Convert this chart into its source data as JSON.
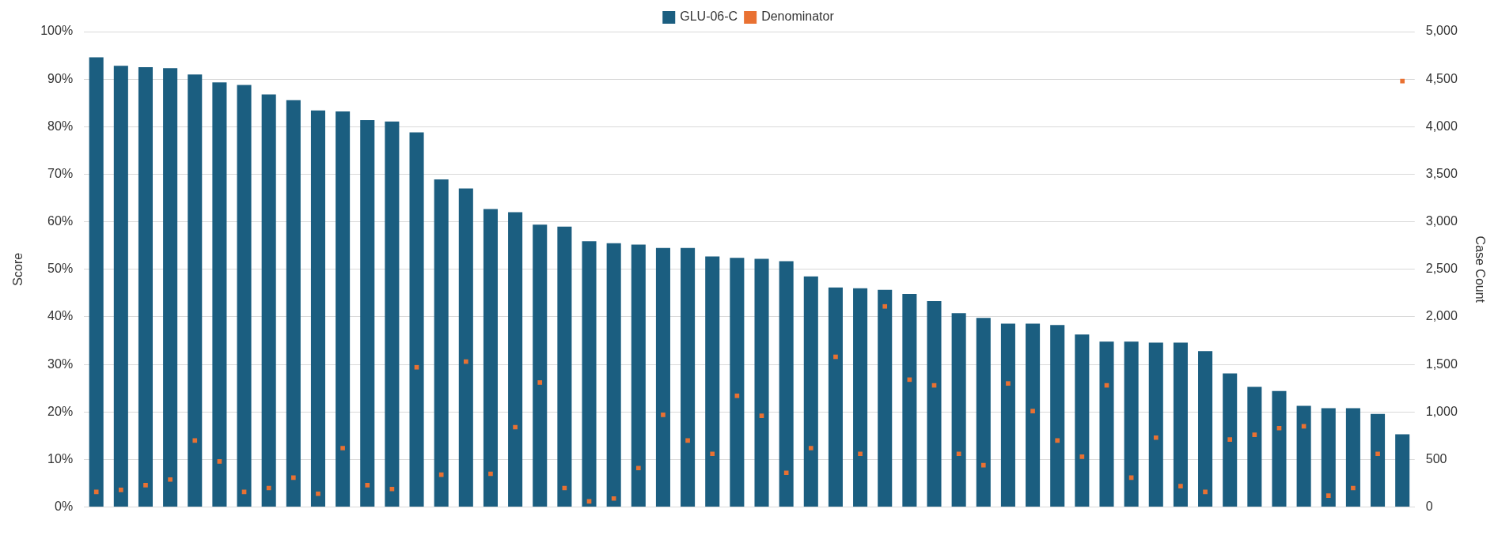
{
  "chart_data": {
    "type": "bar",
    "ylabel": "Score",
    "y2label": "Case Count",
    "categories": [
      null,
      null,
      null,
      null,
      null,
      null,
      null,
      null,
      null,
      null,
      null,
      null,
      null,
      null,
      null,
      null,
      null,
      null,
      null,
      null,
      null,
      null,
      null,
      null,
      null,
      null,
      null,
      null,
      null,
      null,
      null,
      null,
      null,
      null,
      null,
      null,
      null,
      null,
      null,
      null,
      null,
      null,
      null,
      null,
      null,
      null,
      null,
      null,
      null,
      null,
      null,
      null,
      null,
      null
    ],
    "series": [
      {
        "name": "GLU-06-C",
        "color": "#1b5e80",
        "values": [
          94.6,
          92.8,
          92.5,
          92.3,
          91.0,
          89.3,
          88.8,
          86.8,
          85.6,
          83.4,
          83.2,
          81.4,
          81.1,
          78.8,
          68.9,
          67.0,
          62.7,
          62.0,
          59.4,
          59.0,
          55.9,
          55.5,
          55.2,
          54.5,
          54.5,
          52.7,
          52.4,
          52.2,
          51.7,
          48.5,
          46.2,
          46.0,
          45.7,
          44.8,
          43.3,
          40.8,
          39.8,
          38.6,
          38.6,
          38.3,
          36.3,
          34.8,
          34.8,
          34.6,
          34.6,
          32.8,
          28.1,
          25.3,
          24.4,
          21.3,
          20.8,
          20.8,
          19.6,
          15.3
        ]
      },
      {
        "name": "Denominator",
        "type": "scatter",
        "axis": "y2",
        "color": "#e97132",
        "values": [
          160,
          180,
          230,
          290,
          700,
          480,
          160,
          200,
          310,
          140,
          620,
          230,
          190,
          1470,
          340,
          1530,
          350,
          840,
          1310,
          200,
          60,
          90,
          410,
          970,
          700,
          560,
          1170,
          960,
          360,
          620,
          1580,
          560,
          2110,
          1340,
          1280,
          560,
          440,
          1300,
          1010,
          700,
          530,
          1280,
          310,
          730,
          220,
          160,
          710,
          760,
          830,
          850,
          120,
          200,
          560,
          4480
        ]
      }
    ],
    "ylim": [
      0,
      100
    ],
    "yticks": [
      {
        "value": 0,
        "label": "0%"
      },
      {
        "value": 10,
        "label": "10%"
      },
      {
        "value": 20,
        "label": "20%"
      },
      {
        "value": 30,
        "label": "30%"
      },
      {
        "value": 40,
        "label": "40%"
      },
      {
        "value": 50,
        "label": "50%"
      },
      {
        "value": 60,
        "label": "60%"
      },
      {
        "value": 70,
        "label": "70%"
      },
      {
        "value": 80,
        "label": "80%"
      },
      {
        "value": 90,
        "label": "90%"
      },
      {
        "value": 100,
        "label": "100%"
      }
    ],
    "y2lim": [
      0,
      5000
    ],
    "y2ticks": [
      0,
      500,
      {
        "value": 1000,
        "label": "1,000"
      },
      {
        "value": 1500,
        "label": "1,500"
      },
      {
        "value": 2000,
        "label": "2,000"
      },
      {
        "value": 2500,
        "label": "2,500"
      },
      {
        "value": 3000,
        "label": "3,000"
      },
      {
        "value": 3500,
        "label": "3,500"
      },
      {
        "value": 4000,
        "label": "4,000"
      },
      {
        "value": 4500,
        "label": "4,500"
      },
      {
        "value": 5000,
        "label": "5,000"
      }
    ],
    "grid": "y",
    "legend": "top"
  }
}
